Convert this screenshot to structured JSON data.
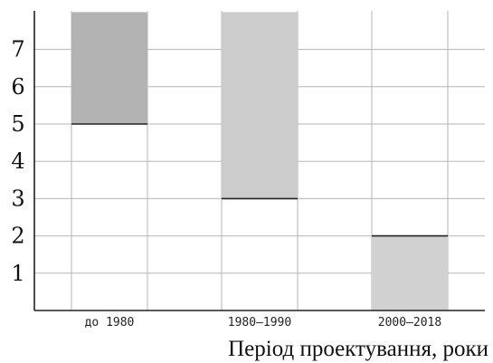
{
  "chart_data": {
    "type": "bar",
    "categories": [
      "до 1980",
      "1980–1990",
      "2000–2018"
    ],
    "series": [
      {
        "range": [
          5,
          8
        ],
        "color": "#b3b3b3"
      },
      {
        "range": [
          3,
          8
        ],
        "color": "#cccccc"
      },
      {
        "range": [
          0,
          2
        ],
        "color": "#d1d1d1"
      }
    ],
    "bars": [
      {
        "category": "до 1980",
        "low": 5,
        "high": 8,
        "color": "#b3b3b3"
      },
      {
        "category": "1980–1990",
        "low": 3,
        "high": 8,
        "color": "#cccccc"
      },
      {
        "category": "2000–2018",
        "low": 0,
        "high": 2,
        "color": "#d1d1d1"
      }
    ],
    "yticks": [
      "1",
      "2",
      "3",
      "4",
      "5",
      "6",
      "7"
    ],
    "ylim": [
      0,
      8
    ],
    "xlabel": "Період проектування, роки",
    "ylabel": "",
    "grid": true
  }
}
